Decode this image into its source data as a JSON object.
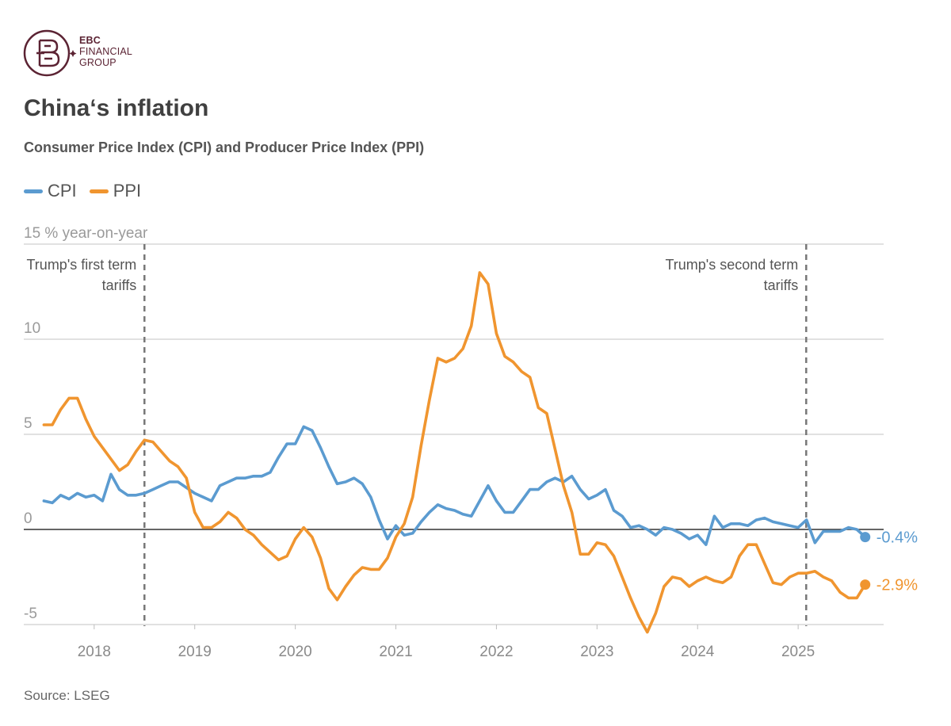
{
  "brand": {
    "line1": "EBC",
    "line2": "FINANCIAL",
    "line3": "GROUP",
    "color": "#5b2333"
  },
  "title": "China‘s inflation",
  "subtitle": "Consumer Price Index (CPI) and Producer Price Index (PPI)",
  "source": "Source: LSEG",
  "legend": [
    {
      "name": "CPI",
      "color": "#5b9bd0"
    },
    {
      "name": "PPI",
      "color": "#f0952f"
    }
  ],
  "chart_data": {
    "type": "line",
    "title": "China‘s inflation",
    "subtitle": "Consumer Price Index (CPI) and Producer Price Index (PPI)",
    "ylabel": "15 % year-on-year",
    "ylim": [
      -5,
      15
    ],
    "yticks": [
      {
        "value": 15,
        "label": "15 % year-on-year"
      },
      {
        "value": 10,
        "label": "10"
      },
      {
        "value": 5,
        "label": "5"
      },
      {
        "value": 0,
        "label": "0"
      },
      {
        "value": -5,
        "label": "-5"
      }
    ],
    "xlim": [
      2017.3,
      2025.85
    ],
    "xticks": [
      {
        "value": 2018,
        "label": "2018"
      },
      {
        "value": 2019,
        "label": "2019"
      },
      {
        "value": 2020,
        "label": "2020"
      },
      {
        "value": 2021,
        "label": "2021"
      },
      {
        "value": 2022,
        "label": "2022"
      },
      {
        "value": 2023,
        "label": "2023"
      },
      {
        "value": 2024,
        "label": "2024"
      },
      {
        "value": 2025,
        "label": "2025"
      }
    ],
    "grid": true,
    "start": 2017.5,
    "step": 0.0833333,
    "series": [
      {
        "name": "CPI",
        "color": "#5b9bd0",
        "end_label": "-0.4%",
        "values": [
          1.5,
          1.4,
          1.8,
          1.6,
          1.9,
          1.7,
          1.8,
          1.5,
          2.9,
          2.1,
          1.8,
          1.8,
          1.9,
          2.1,
          2.3,
          2.5,
          2.5,
          2.2,
          1.9,
          1.7,
          1.5,
          2.3,
          2.5,
          2.7,
          2.7,
          2.8,
          2.8,
          3.0,
          3.8,
          4.5,
          4.5,
          5.4,
          5.2,
          4.3,
          3.3,
          2.4,
          2.5,
          2.7,
          2.4,
          1.7,
          0.5,
          -0.5,
          0.2,
          -0.3,
          -0.2,
          0.4,
          0.9,
          1.3,
          1.1,
          1.0,
          0.8,
          0.7,
          1.5,
          2.3,
          1.5,
          0.9,
          0.9,
          1.5,
          2.1,
          2.1,
          2.5,
          2.7,
          2.5,
          2.8,
          2.1,
          1.6,
          1.8,
          2.1,
          1.0,
          0.7,
          0.1,
          0.2,
          0.0,
          -0.3,
          0.1,
          0.0,
          -0.2,
          -0.5,
          -0.3,
          -0.8,
          0.7,
          0.1,
          0.3,
          0.3,
          0.2,
          0.5,
          0.6,
          0.4,
          0.3,
          0.2,
          0.1,
          0.5,
          -0.7,
          -0.1,
          -0.1,
          -0.1,
          0.1,
          0.0,
          -0.4
        ]
      },
      {
        "name": "PPI",
        "color": "#f0952f",
        "end_label": "-2.9%",
        "values": [
          5.5,
          5.5,
          6.3,
          6.9,
          6.9,
          5.8,
          4.9,
          4.3,
          3.7,
          3.1,
          3.4,
          4.1,
          4.7,
          4.6,
          4.1,
          3.6,
          3.3,
          2.7,
          0.9,
          0.1,
          0.1,
          0.4,
          0.9,
          0.6,
          0.0,
          -0.3,
          -0.8,
          -1.2,
          -1.6,
          -1.4,
          -0.5,
          0.1,
          -0.4,
          -1.5,
          -3.1,
          -3.7,
          -3.0,
          -2.4,
          -2.0,
          -2.1,
          -2.1,
          -1.5,
          -0.4,
          0.3,
          1.7,
          4.4,
          6.8,
          9.0,
          8.8,
          9.0,
          9.5,
          10.7,
          13.5,
          12.9,
          10.3,
          9.1,
          8.8,
          8.3,
          8.0,
          6.4,
          6.1,
          4.2,
          2.3,
          0.9,
          -1.3,
          -1.3,
          -0.7,
          -0.8,
          -1.4,
          -2.5,
          -3.6,
          -4.6,
          -5.4,
          -4.4,
          -3.0,
          -2.5,
          -2.6,
          -3.0,
          -2.7,
          -2.5,
          -2.7,
          -2.8,
          -2.5,
          -1.4,
          -0.8,
          -0.8,
          -1.8,
          -2.8,
          -2.9,
          -2.5,
          -2.3,
          -2.3,
          -2.2,
          -2.5,
          -2.7,
          -3.3,
          -3.6,
          -3.6,
          -2.9
        ]
      }
    ],
    "annotations": [
      {
        "x": 2018.5,
        "lines": [
          "Trump's first term",
          "tariffs"
        ],
        "align": "right"
      },
      {
        "x": 2025.08,
        "lines": [
          "Trump's second term",
          "tariffs"
        ],
        "align": "right"
      }
    ]
  }
}
